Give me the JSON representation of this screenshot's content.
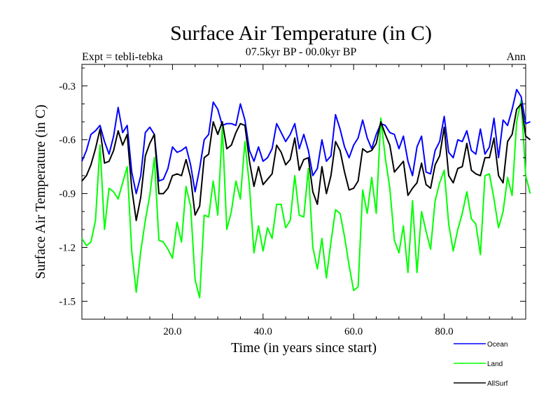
{
  "chart_data": {
    "type": "line",
    "title": "Surface Air Temperature (in C)",
    "subtitle_left": "Expt = tebli-tebka",
    "subtitle_center": "07.5kyr BP - 00.0kyr BP",
    "subtitle_right": "Ann",
    "xlabel": "Time (in years since start)",
    "ylabel": "Surface Air Temperature (in C)",
    "xlim": [
      0,
      98
    ],
    "ylim": [
      -1.6,
      -0.18
    ],
    "x_ticks": [
      20,
      40,
      60,
      80
    ],
    "x_tick_labels": [
      "20.0",
      "40.0",
      "60.0",
      "80.0"
    ],
    "y_ticks": [
      -0.3,
      -0.6,
      -0.9,
      -1.2,
      -1.5
    ],
    "y_tick_labels": [
      "-0.3",
      "-0.6",
      "-0.9",
      "-1.2",
      "-1.5"
    ],
    "x_start": 0,
    "series": [
      {
        "name": "Ocean",
        "color": "#0000ff",
        "values": [
          -0.72,
          -0.66,
          -0.57,
          -0.55,
          -0.52,
          -0.61,
          -0.68,
          -0.58,
          -0.42,
          -0.56,
          -0.52,
          -0.78,
          -0.9,
          -0.8,
          -0.56,
          -0.53,
          -0.57,
          -0.83,
          -0.82,
          -0.76,
          -0.64,
          -0.67,
          -0.66,
          -0.64,
          -0.74,
          -0.89,
          -0.76,
          -0.6,
          -0.57,
          -0.39,
          -0.43,
          -0.52,
          -0.51,
          -0.51,
          -0.52,
          -0.4,
          -0.49,
          -0.66,
          -0.72,
          -0.64,
          -0.72,
          -0.7,
          -0.65,
          -0.51,
          -0.56,
          -0.61,
          -0.57,
          -0.51,
          -0.65,
          -0.57,
          -0.66,
          -0.8,
          -0.76,
          -0.6,
          -0.72,
          -0.69,
          -0.46,
          -0.54,
          -0.64,
          -0.7,
          -0.63,
          -0.59,
          -0.49,
          -0.59,
          -0.65,
          -0.57,
          -0.51,
          -0.52,
          -0.56,
          -0.57,
          -0.65,
          -0.58,
          -0.72,
          -0.8,
          -0.64,
          -0.58,
          -0.78,
          -0.79,
          -0.66,
          -0.61,
          -0.47,
          -0.67,
          -0.7,
          -0.6,
          -0.61,
          -0.55,
          -0.66,
          -0.68,
          -0.54,
          -0.68,
          -0.64,
          -0.48,
          -0.7,
          -0.49,
          -0.52,
          -0.43,
          -0.32,
          -0.36,
          -0.51,
          -0.5
        ]
      },
      {
        "name": "Land",
        "color": "#00ff00",
        "values": [
          -1.15,
          -1.19,
          -1.17,
          -1.05,
          -0.63,
          -1.1,
          -0.87,
          -0.89,
          -0.93,
          -0.84,
          -0.75,
          -1.22,
          -1.45,
          -1.22,
          -1.05,
          -0.91,
          -0.7,
          -1.16,
          -1.17,
          -1.21,
          -1.26,
          -1.06,
          -1.17,
          -0.86,
          -0.97,
          -1.38,
          -1.48,
          -1.02,
          -1.03,
          -0.83,
          -1.02,
          -0.53,
          -1.1,
          -1.0,
          -0.83,
          -0.93,
          -0.61,
          -0.86,
          -1.23,
          -1.08,
          -1.22,
          -1.09,
          -1.15,
          -0.96,
          -0.96,
          -1.09,
          -1.05,
          -0.8,
          -1.02,
          -1.03,
          -0.76,
          -1.2,
          -1.32,
          -1.15,
          -1.37,
          -1.17,
          -0.99,
          -1.01,
          -1.14,
          -1.3,
          -1.44,
          -1.42,
          -0.88,
          -1.01,
          -0.81,
          -1.01,
          -0.48,
          -0.7,
          -0.87,
          -1.16,
          -1.23,
          -1.08,
          -1.34,
          -0.94,
          -1.34,
          -1.0,
          -1.11,
          -1.21,
          -0.94,
          -0.84,
          -0.77,
          -1.07,
          -1.22,
          -1.1,
          -1.01,
          -0.89,
          -1.04,
          -1.07,
          -1.24,
          -0.8,
          -0.79,
          -0.93,
          -1.09,
          -1.0,
          -0.81,
          -0.91,
          -0.5,
          -0.38,
          -0.8,
          -0.9
        ]
      },
      {
        "name": "AllSurf",
        "color": "#000000",
        "values": [
          -0.83,
          -0.8,
          -0.74,
          -0.65,
          -0.54,
          -0.73,
          -0.72,
          -0.66,
          -0.55,
          -0.63,
          -0.57,
          -0.87,
          -1.05,
          -0.92,
          -0.69,
          -0.62,
          -0.57,
          -0.9,
          -0.9,
          -0.87,
          -0.8,
          -0.79,
          -0.8,
          -0.71,
          -0.81,
          -1.02,
          -0.97,
          -0.7,
          -0.68,
          -0.5,
          -0.57,
          -0.5,
          -0.65,
          -0.63,
          -0.56,
          -0.51,
          -0.52,
          -0.72,
          -0.86,
          -0.75,
          -0.85,
          -0.82,
          -0.79,
          -0.63,
          -0.67,
          -0.74,
          -0.71,
          -0.59,
          -0.77,
          -0.71,
          -0.7,
          -0.89,
          -0.96,
          -0.75,
          -0.9,
          -0.8,
          -0.61,
          -0.66,
          -0.78,
          -0.88,
          -0.87,
          -0.83,
          -0.65,
          -0.67,
          -0.66,
          -0.62,
          -0.5,
          -0.57,
          -0.63,
          -0.78,
          -0.75,
          -0.72,
          -0.91,
          -0.87,
          -0.84,
          -0.73,
          -0.85,
          -0.87,
          -0.74,
          -0.69,
          -0.53,
          -0.8,
          -0.84,
          -0.76,
          -0.75,
          -0.62,
          -0.77,
          -0.79,
          -0.8,
          -0.7,
          -0.7,
          -0.59,
          -0.8,
          -0.84,
          -0.61,
          -0.57,
          -0.43,
          -0.4,
          -0.58,
          -0.6
        ]
      }
    ],
    "legend": {
      "placement": "bottom-right",
      "entries": [
        "Ocean",
        "Land",
        "AllSurf"
      ]
    }
  }
}
